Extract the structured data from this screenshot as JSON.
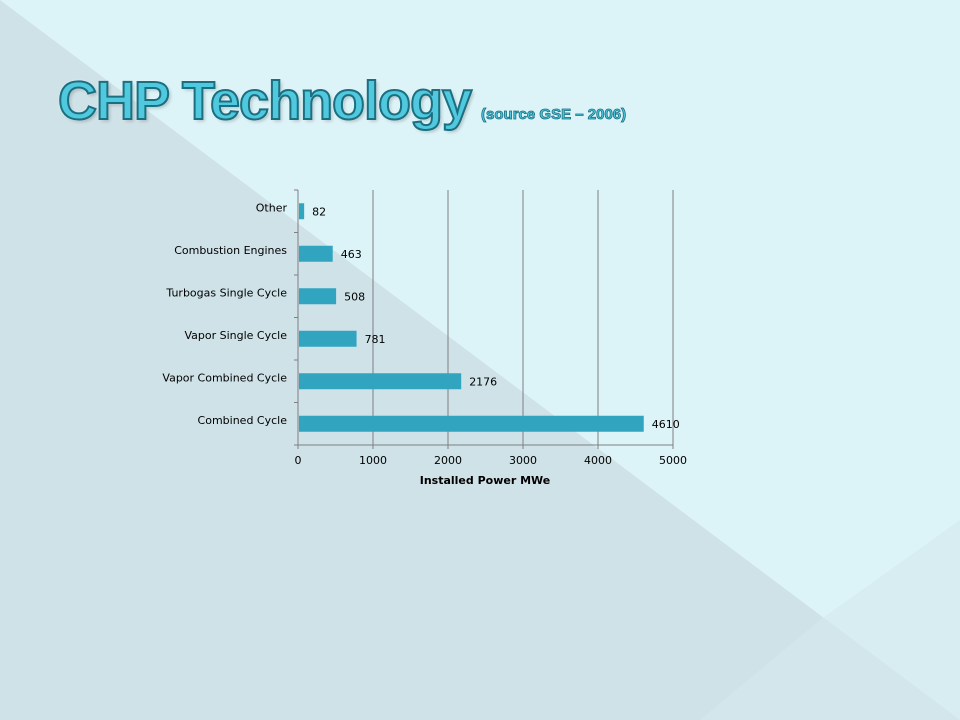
{
  "slide": {
    "title": "CHP Technology",
    "subtitle": "(source GSE – 2006)"
  },
  "colors": {
    "background": "#dcf3f8",
    "bar": "#31a5c0",
    "title_fill": "#50c8de"
  },
  "chart_data": {
    "type": "bar",
    "orientation": "horizontal",
    "categories": [
      "Combined Cycle",
      "Vapor Combined Cycle",
      "Vapor Single Cycle",
      "Turbogas Single Cycle",
      "Combustion Engines",
      "Other"
    ],
    "values": [
      4610,
      2176,
      781,
      508,
      463,
      82
    ],
    "data_labels": [
      "4610",
      "2176",
      "781",
      "508",
      "463",
      "82"
    ],
    "xlabel": "Installed Power MWe",
    "ylabel": "",
    "xlim": [
      0,
      5000
    ],
    "xticks": [
      "0",
      "1000",
      "2000",
      "3000",
      "4000",
      "5000"
    ],
    "grid": "vertical",
    "legend": "none"
  }
}
